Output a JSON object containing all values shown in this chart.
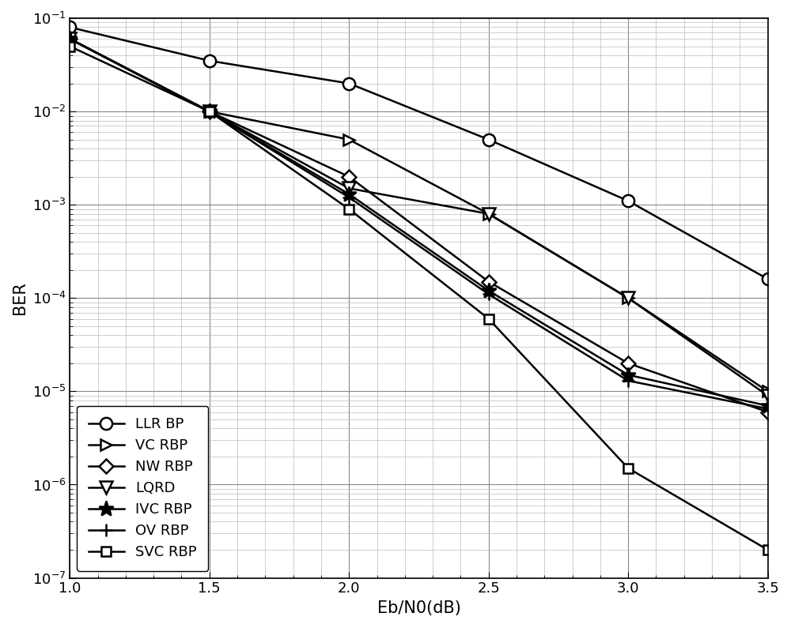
{
  "x": [
    1.0,
    1.5,
    2.0,
    2.5,
    3.0,
    3.5
  ],
  "series": {
    "LLR BP": {
      "y": [
        0.08,
        0.035,
        0.02,
        0.005,
        0.0011,
        0.00016
      ],
      "marker": "o",
      "markersize": 11,
      "linewidth": 1.8,
      "mfc": "white"
    },
    "VC RBP": {
      "y": [
        0.06,
        0.01,
        0.005,
        0.0008,
        0.0001,
        1e-05
      ],
      "marker": ">",
      "markersize": 10,
      "linewidth": 1.8,
      "mfc": "white"
    },
    "NW RBP": {
      "y": [
        0.06,
        0.01,
        0.002,
        0.00015,
        2e-05,
        6e-06
      ],
      "marker": "D",
      "markersize": 9,
      "linewidth": 1.8,
      "mfc": "white"
    },
    "LQRD": {
      "y": [
        0.06,
        0.01,
        0.0015,
        0.0008,
        0.0001,
        9e-06
      ],
      "marker": "v",
      "markersize": 12,
      "linewidth": 1.8,
      "mfc": "white"
    },
    "IVC RBP": {
      "y": [
        0.06,
        0.01,
        0.0013,
        0.00012,
        1.5e-05,
        7e-06
      ],
      "marker": "*",
      "markersize": 14,
      "linewidth": 1.8,
      "mfc": "black"
    },
    "OV RBP": {
      "y": [
        0.06,
        0.01,
        0.0012,
        0.00011,
        1.3e-05,
        6.5e-06
      ],
      "marker": "+",
      "markersize": 12,
      "linewidth": 1.8,
      "mfc": "black"
    },
    "SVC RBP": {
      "y": [
        0.05,
        0.01,
        0.0009,
        6e-05,
        1.5e-06,
        2e-07
      ],
      "marker": "s",
      "markersize": 9,
      "linewidth": 1.8,
      "mfc": "white"
    }
  },
  "xlim": [
    1.0,
    3.5
  ],
  "ylim": [
    1e-07,
    0.1
  ],
  "xlabel": "Eb/N0(dB)",
  "ylabel": "BER",
  "line_color": "#000000",
  "background_color": "#ffffff",
  "grid_major_color": "#bbbbbb",
  "grid_minor_color": "#dddddd",
  "legend_loc": "lower left",
  "xticks": [
    1.0,
    1.5,
    2.0,
    2.5,
    3.0,
    3.5
  ],
  "figsize": [
    10.0,
    7.95
  ],
  "dpi": 100
}
